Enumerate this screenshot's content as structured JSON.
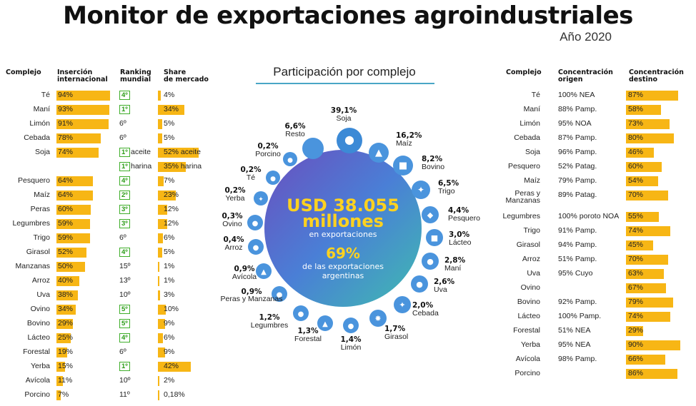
{
  "header": {
    "title": "Monitor de exportaciones agroindustriales",
    "year": "Año 2020"
  },
  "left": {
    "headers": {
      "complejo": "Complejo",
      "insercion_1": "Inserción",
      "insercion_2": "internacional",
      "ranking_1": "Ranking",
      "ranking_2": "mundial",
      "share_1": "Share",
      "share_2": "de mercado"
    },
    "rows": [
      {
        "name": "Té",
        "ins": "94%",
        "ins_v": 94,
        "rank": "4º",
        "rank_box": true,
        "share": "4%",
        "share_v": 4
      },
      {
        "name": "Maní",
        "ins": "93%",
        "ins_v": 93,
        "rank": "1º",
        "rank_box": true,
        "share": "34%",
        "share_v": 34
      },
      {
        "name": "Limón",
        "ins": "91%",
        "ins_v": 91,
        "rank": "6º",
        "rank_box": false,
        "share": "5%",
        "share_v": 5
      },
      {
        "name": "Cebada",
        "ins": "78%",
        "ins_v": 78,
        "rank": "6º",
        "rank_box": false,
        "share": "5%",
        "share_v": 5
      },
      {
        "name": "Soja",
        "ins": "74%",
        "ins_v": 74,
        "rank": "1º",
        "rank_box": true,
        "rank_suffix": "aceite",
        "share": "52% aceite",
        "share_v": 52
      },
      {
        "name": "",
        "ins": "",
        "ins_v": 0,
        "rank": "1º",
        "rank_box": true,
        "rank_suffix": "harina",
        "share": "35% harina",
        "share_v": 35
      },
      {
        "name": "Pesquero",
        "ins": "64%",
        "ins_v": 64,
        "rank": "4º",
        "rank_box": true,
        "share": "7%",
        "share_v": 7
      },
      {
        "name": "Maíz",
        "ins": "64%",
        "ins_v": 64,
        "rank": "2º",
        "rank_box": true,
        "share": "23%",
        "share_v": 23
      },
      {
        "name": "Peras",
        "ins": "60%",
        "ins_v": 60,
        "rank": "3º",
        "rank_box": true,
        "share": "12%",
        "share_v": 12
      },
      {
        "name": "Legumbres",
        "ins": "59%",
        "ins_v": 59,
        "rank": "3º",
        "rank_box": true,
        "share": "12%",
        "share_v": 12
      },
      {
        "name": "Trigo",
        "ins": "59%",
        "ins_v": 59,
        "rank": "6º",
        "rank_box": false,
        "share": "6%",
        "share_v": 6
      },
      {
        "name": "Girasol",
        "ins": "52%",
        "ins_v": 52,
        "rank": "4º",
        "rank_box": true,
        "share": "5%",
        "share_v": 5
      },
      {
        "name": "Manzanas",
        "ins": "50%",
        "ins_v": 50,
        "rank": "15º",
        "rank_box": false,
        "share": "1%",
        "share_v": 1
      },
      {
        "name": "Arroz",
        "ins": "40%",
        "ins_v": 40,
        "rank": "13º",
        "rank_box": false,
        "share": "1%",
        "share_v": 1
      },
      {
        "name": "Uva",
        "ins": "38%",
        "ins_v": 38,
        "rank": "10º",
        "rank_box": false,
        "share": "3%",
        "share_v": 3
      },
      {
        "name": "Ovino",
        "ins": "34%",
        "ins_v": 34,
        "rank": "5º",
        "rank_box": true,
        "share": "10%",
        "share_v": 10
      },
      {
        "name": "Bovino",
        "ins": "29%",
        "ins_v": 29,
        "rank": "5º",
        "rank_box": true,
        "share": "9%",
        "share_v": 9
      },
      {
        "name": "Lácteo",
        "ins": "25%",
        "ins_v": 25,
        "rank": "4º",
        "rank_box": true,
        "share": "6%",
        "share_v": 6
      },
      {
        "name": "Forestal",
        "ins": "19%",
        "ins_v": 19,
        "rank": "6º",
        "rank_box": false,
        "share": "9%",
        "share_v": 9
      },
      {
        "name": "Yerba",
        "ins": "15%",
        "ins_v": 15,
        "rank": "1º",
        "rank_box": true,
        "share": "42%",
        "share_v": 42
      },
      {
        "name": "Avícola",
        "ins": "11%",
        "ins_v": 11,
        "rank": "10º",
        "rank_box": false,
        "share": "2%",
        "share_v": 2
      },
      {
        "name": "Porcino",
        "ins": "7%",
        "ins_v": 7,
        "rank": "11º",
        "rank_box": false,
        "share": "0,18%",
        "share_v": 0.18
      }
    ]
  },
  "chart_data": {
    "type": "pie",
    "title": "Participación por complejo",
    "center": {
      "amount": "USD 38.055",
      "unit": "millones",
      "sub1": "en exportaciones",
      "pct": "69%",
      "sub2": "de las exportaciones",
      "sub3": "argentinas"
    },
    "slices": [
      {
        "label": "Soja",
        "pct": "39,1%",
        "value": 39.1,
        "icon": "soybean-icon"
      },
      {
        "label": "Maíz",
        "pct": "16,2%",
        "value": 16.2,
        "icon": "corn-icon"
      },
      {
        "label": "Bovino",
        "pct": "8,2%",
        "value": 8.2,
        "icon": "cow-icon"
      },
      {
        "label": "Trigo",
        "pct": "6,5%",
        "value": 6.5,
        "icon": "wheat-icon"
      },
      {
        "label": "Pesquero",
        "pct": "4,4%",
        "value": 4.4,
        "icon": "fish-icon"
      },
      {
        "label": "Lácteo",
        "pct": "3,0%",
        "value": 3.0,
        "icon": "milk-icon"
      },
      {
        "label": "Maní",
        "pct": "2,8%",
        "value": 2.8,
        "icon": "peanut-icon"
      },
      {
        "label": "Uva",
        "pct": "2,6%",
        "value": 2.6,
        "icon": "grape-icon"
      },
      {
        "label": "Cebada",
        "pct": "2,0%",
        "value": 2.0,
        "icon": "barley-icon"
      },
      {
        "label": "Girasol",
        "pct": "1,7%",
        "value": 1.7,
        "icon": "sunflower-icon"
      },
      {
        "label": "Limón",
        "pct": "1,4%",
        "value": 1.4,
        "icon": "lemon-icon"
      },
      {
        "label": "Forestal",
        "pct": "1,3%",
        "value": 1.3,
        "icon": "tree-icon"
      },
      {
        "label": "Legumbres",
        "pct": "1,2%",
        "value": 1.2,
        "icon": "bean-icon"
      },
      {
        "label": "Peras y Manzanas",
        "pct": "0,9%",
        "value": 0.9,
        "icon": "apple-icon"
      },
      {
        "label": "Avícola",
        "pct": "0,9%",
        "value": 0.9,
        "icon": "chicken-icon"
      },
      {
        "label": "Arroz",
        "pct": "0,4%",
        "value": 0.4,
        "icon": "rice-icon"
      },
      {
        "label": "Ovino",
        "pct": "0,3%",
        "value": 0.3,
        "icon": "sheep-icon"
      },
      {
        "label": "Yerba",
        "pct": "0,2%",
        "value": 0.2,
        "icon": "leaf-icon"
      },
      {
        "label": "Té",
        "pct": "0,2%",
        "value": 0.2,
        "icon": "tea-icon"
      },
      {
        "label": "Porcino",
        "pct": "0,2%",
        "value": 0.2,
        "icon": "pig-icon"
      },
      {
        "label": "Resto",
        "pct": "6,6%",
        "value": 6.6,
        "icon": "circle-icon"
      }
    ]
  },
  "right": {
    "headers": {
      "complejo": "Complejo",
      "origen_1": "Concentración",
      "origen_2": "origen",
      "destino_1": "Concentración",
      "destino_2": "destino"
    },
    "rows": [
      {
        "name": "Té",
        "origen": "100% NEA",
        "dest": "87%",
        "dest_v": 87
      },
      {
        "name": "Maní",
        "origen": "88% Pamp.",
        "dest": "58%",
        "dest_v": 58
      },
      {
        "name": "Limón",
        "origen": "95% NOA",
        "dest": "73%",
        "dest_v": 73
      },
      {
        "name": "Cebada",
        "origen": "87% Pamp.",
        "dest": "80%",
        "dest_v": 80
      },
      {
        "name": "Soja",
        "origen": "96% Pamp.",
        "dest": "46%",
        "dest_v": 46
      },
      {
        "name": "Pesquero",
        "origen": "52% Patag.",
        "dest": "60%",
        "dest_v": 60
      },
      {
        "name": "Maíz",
        "origen": "79% Pamp.",
        "dest": "54%",
        "dest_v": 54
      },
      {
        "name": "Peras y Manzanas",
        "origen": "89% Patag.",
        "dest": "70%",
        "dest_v": 70
      },
      {
        "name": "Legumbres",
        "origen": "100% poroto NOA",
        "dest": "55%",
        "dest_v": 55
      },
      {
        "name": "Trigo",
        "origen": "91% Pamp.",
        "dest": "74%",
        "dest_v": 74
      },
      {
        "name": "Girasol",
        "origen": "94% Pamp.",
        "dest": "45%",
        "dest_v": 45
      },
      {
        "name": "Arroz",
        "origen": "51% Pamp.",
        "dest": "70%",
        "dest_v": 70
      },
      {
        "name": "Uva",
        "origen": "95% Cuyo",
        "dest": "63%",
        "dest_v": 63
      },
      {
        "name": "Ovino",
        "origen": "",
        "dest": "67%",
        "dest_v": 67
      },
      {
        "name": "Bovino",
        "origen": "92% Pamp.",
        "dest": "79%",
        "dest_v": 79
      },
      {
        "name": "Lácteo",
        "origen": "100% Pamp.",
        "dest": "74%",
        "dest_v": 74
      },
      {
        "name": "Forestal",
        "origen": "51% NEA",
        "dest": "29%",
        "dest_v": 29
      },
      {
        "name": "Yerba",
        "origen": "95% NEA",
        "dest": "90%",
        "dest_v": 90
      },
      {
        "name": "Avícola",
        "origen": "98% Pamp.",
        "dest": "66%",
        "dest_v": 66
      },
      {
        "name": "Porcino",
        "origen": "",
        "dest": "86%",
        "dest_v": 86
      }
    ]
  }
}
